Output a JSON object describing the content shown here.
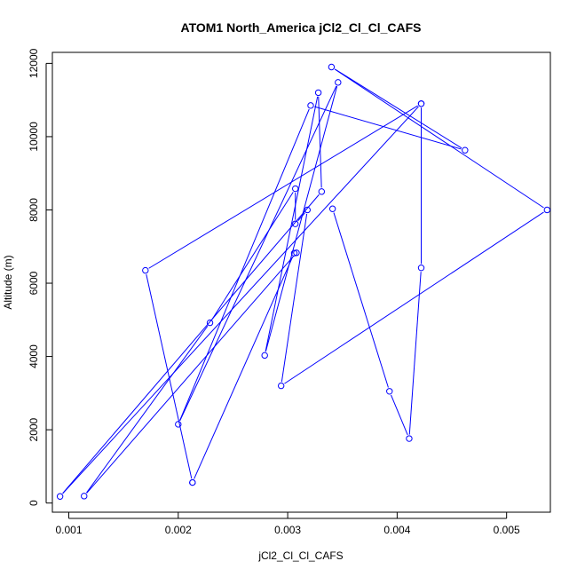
{
  "chart_data": {
    "type": "line",
    "title": "ATOM1 North_America jCl2_Cl_Cl_CAFS",
    "xlabel": "jCl2_Cl_Cl_CAFS",
    "ylabel": "Altitude (m)",
    "xlim": [
      0.00085,
      0.0054
    ],
    "ylim": [
      -250,
      12300
    ],
    "x_ticks": [
      0.001,
      0.002,
      0.003,
      0.004,
      0.005
    ],
    "x_tick_labels": [
      "0.001",
      "0.002",
      "0.003",
      "0.004",
      "0.005"
    ],
    "y_ticks": [
      0,
      2000,
      4000,
      6000,
      8000,
      10000,
      12000
    ],
    "y_tick_labels": [
      "0",
      "2000",
      "4000",
      "6000",
      "8000",
      "10000",
      "12000"
    ],
    "grid": false,
    "markers": "open-circle",
    "color": "#0000ff",
    "series": [
      {
        "points": [
          [
            0.00213,
            560
          ],
          [
            0.0017,
            6350
          ],
          [
            0.00422,
            10900
          ],
          [
            0.00092,
            180
          ],
          [
            0.00331,
            8500
          ],
          [
            0.00328,
            11200
          ],
          [
            0.00279,
            4030
          ],
          [
            0.00346,
            11480
          ],
          [
            0.002,
            2150
          ],
          [
            0.00321,
            10850
          ],
          [
            0.00462,
            9630
          ],
          [
            0.0034,
            11900
          ],
          [
            0.00537,
            8000
          ],
          [
            0.00294,
            3200
          ],
          [
            0.00318,
            8000
          ],
          [
            0.00307,
            7620
          ],
          [
            0.00307,
            8580
          ],
          [
            0.00229,
            4920
          ],
          [
            0.00114,
            190
          ],
          [
            0.00308,
            6830
          ],
          [
            0.00306,
            6820
          ],
          [
            0.00213,
            560
          ]
        ]
      },
      {
        "points": [
          [
            0.00341,
            8030
          ],
          [
            0.00393,
            3050
          ],
          [
            0.00411,
            1760
          ],
          [
            0.00422,
            6420
          ],
          [
            0.00422,
            10900
          ]
        ]
      }
    ]
  }
}
